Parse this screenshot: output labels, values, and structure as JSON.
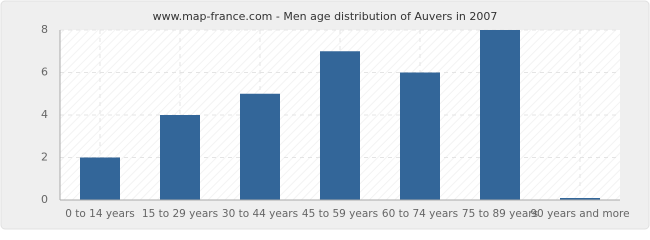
{
  "chart_data": {
    "type": "bar",
    "title": "www.map-france.com - Men age distribution of Auvers in 2007",
    "categories": [
      "0 to 14 years",
      "15 to 29 years",
      "30 to 44 years",
      "45 to 59 years",
      "60 to 74 years",
      "75 to 89 years",
      "90 years and more"
    ],
    "values": [
      2,
      4,
      5,
      7,
      6,
      8,
      0
    ],
    "color": "#336699",
    "ylim": [
      0,
      8
    ],
    "yticks": [
      0,
      2,
      4,
      6,
      8
    ],
    "grid": true
  }
}
